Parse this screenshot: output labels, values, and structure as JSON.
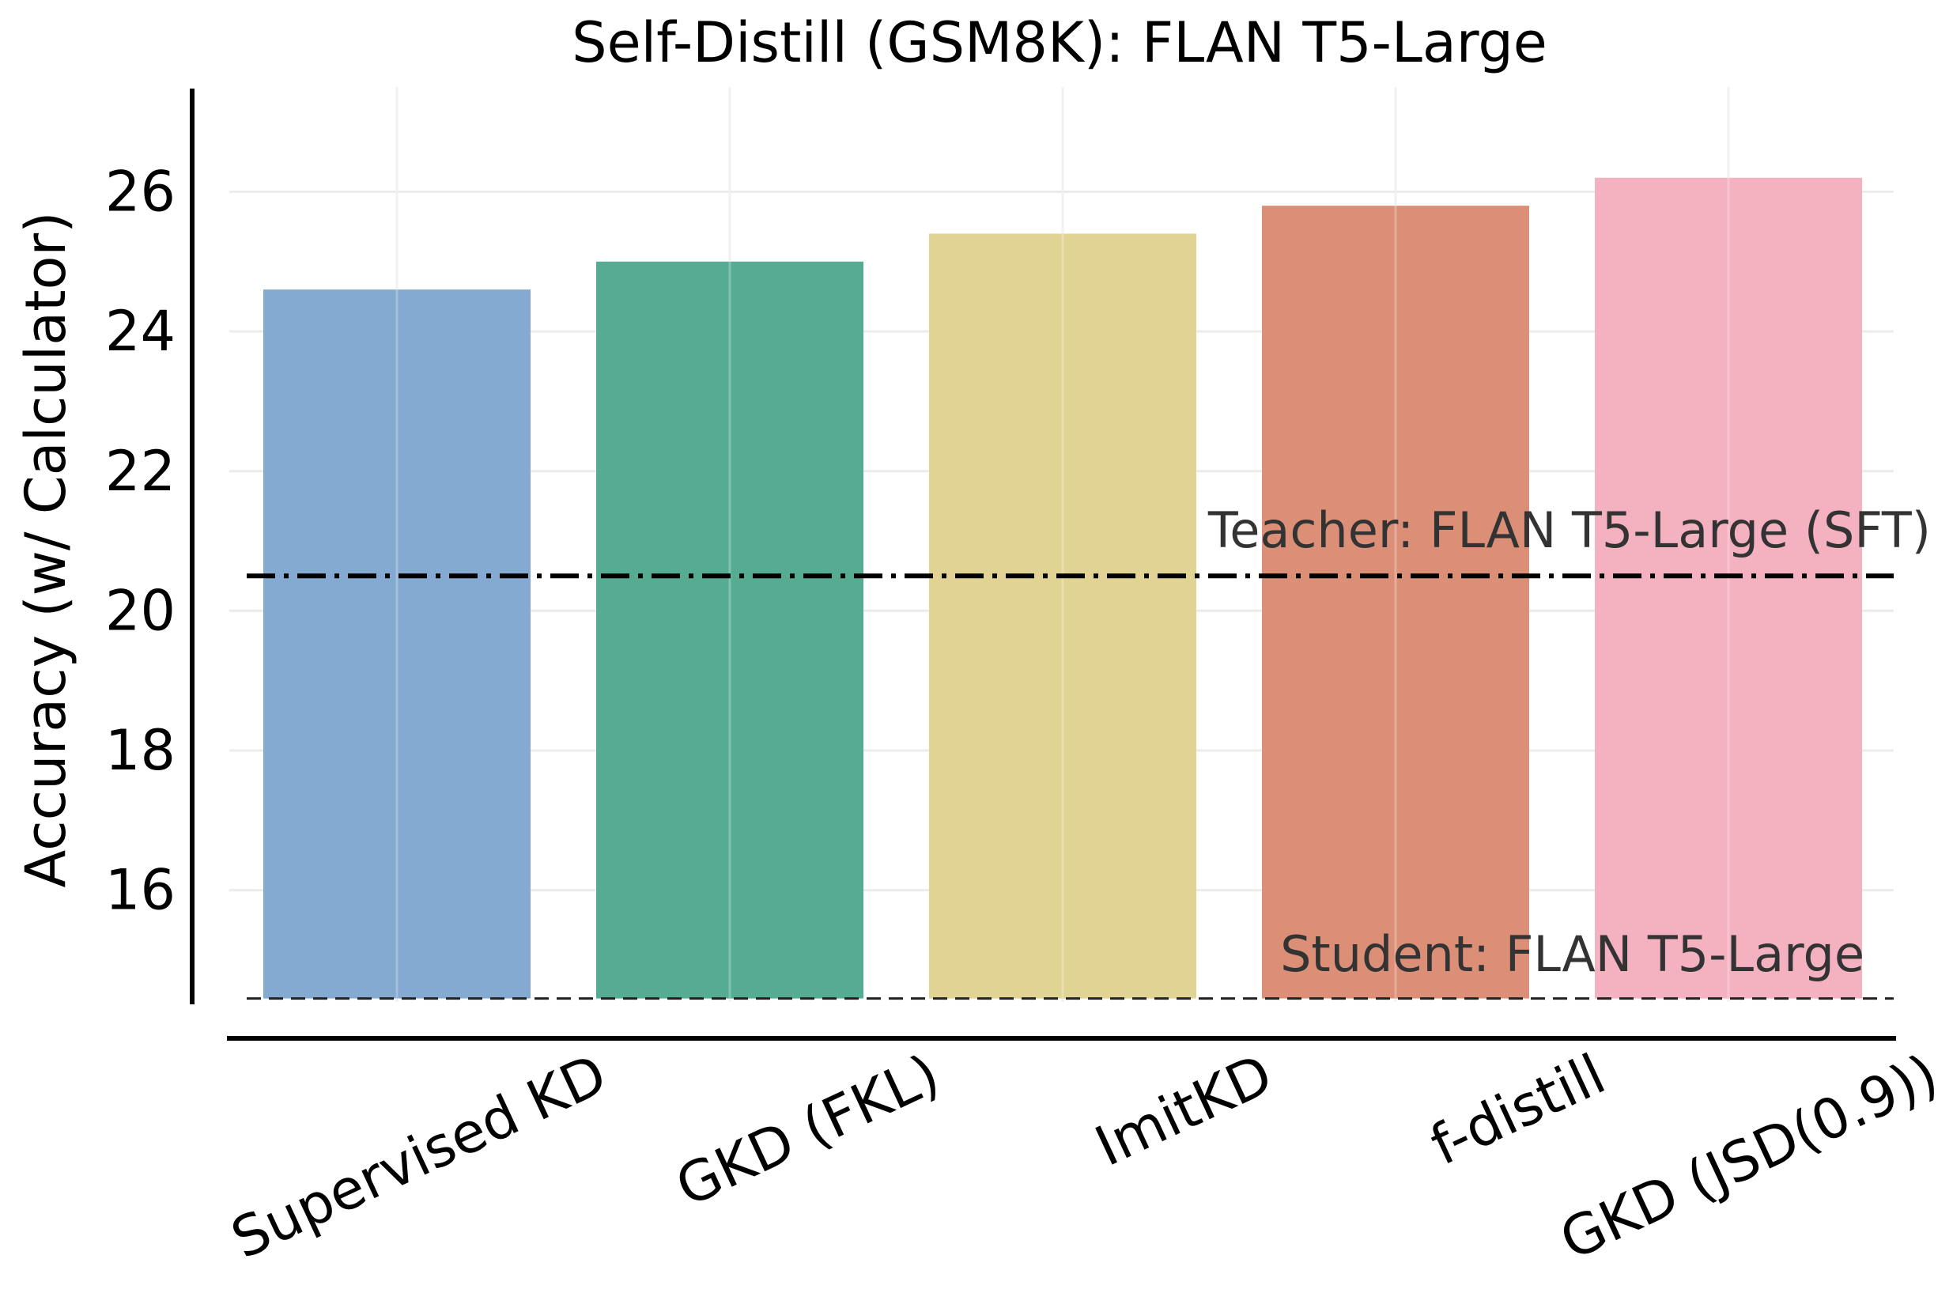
{
  "chart_data": {
    "type": "bar",
    "title": "Self-Distill (GSM8K): FLAN T5-Large",
    "xlabel": "",
    "ylabel": "Accuracy (w/ Calculator)",
    "categories": [
      "Supervised KD",
      "GKD (FKL)",
      "ImitKD",
      "f-distill",
      "GKD (JSD(0.9))"
    ],
    "values": [
      24.6,
      25.0,
      25.4,
      25.8,
      26.2
    ],
    "colors": [
      "#84aad1",
      "#55ac92",
      "#e0d393",
      "#dc8f77",
      "#f4b1bf"
    ],
    "ylim": [
      14.4,
      27.5
    ],
    "yticks": [
      16,
      18,
      20,
      22,
      24,
      26
    ],
    "grid": true,
    "reference_lines": [
      {
        "label": "Teacher: FLAN T5-Large (SFT)",
        "value": 20.5,
        "style": "dash-dot"
      },
      {
        "label": "Student: FLAN T5-Large",
        "value": 14.45,
        "style": "dashed"
      }
    ]
  }
}
